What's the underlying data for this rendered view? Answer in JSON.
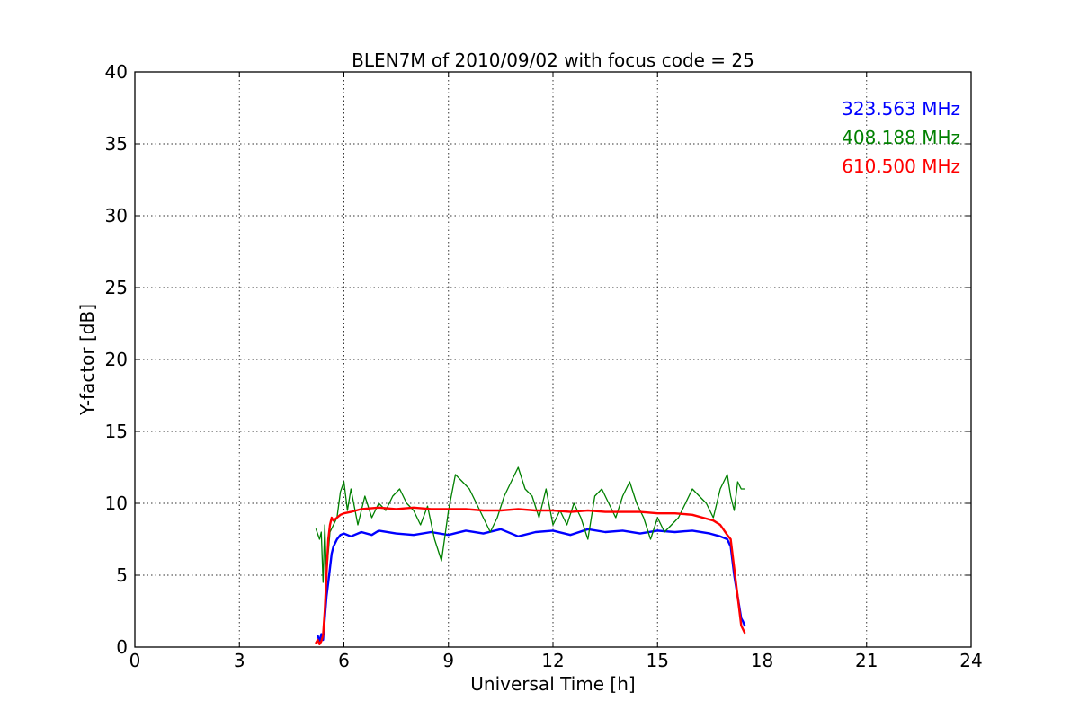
{
  "chart_data": {
    "type": "line",
    "title": "BLEN7M of 2010/09/02 with focus code = 25",
    "xlabel": "Universal Time [h]",
    "ylabel": "Y-factor [dB]",
    "xlim": [
      0,
      24
    ],
    "ylim": [
      0,
      40
    ],
    "xticks": [
      0,
      3,
      6,
      9,
      12,
      15,
      18,
      21,
      24
    ],
    "yticks": [
      0,
      5,
      10,
      15,
      20,
      25,
      30,
      35,
      40
    ],
    "grid": true,
    "legend_position": "top-right",
    "series": [
      {
        "name": "323.563 MHz",
        "color": "#0000ff",
        "x": [
          5.25,
          5.3,
          5.35,
          5.4,
          5.45,
          5.5,
          5.55,
          5.6,
          5.65,
          5.7,
          5.8,
          5.9,
          6.0,
          6.2,
          6.5,
          6.8,
          7.0,
          7.5,
          8.0,
          8.5,
          9.0,
          9.5,
          10.0,
          10.5,
          11.0,
          11.5,
          12.0,
          12.5,
          13.0,
          13.5,
          14.0,
          14.5,
          15.0,
          15.5,
          16.0,
          16.5,
          16.8,
          17.0,
          17.1,
          17.2,
          17.3,
          17.4,
          17.45,
          17.5
        ],
        "y": [
          0.8,
          0.4,
          0.9,
          0.5,
          2.0,
          3.5,
          4.5,
          5.5,
          6.5,
          7.0,
          7.5,
          7.8,
          7.9,
          7.7,
          8.0,
          7.8,
          8.1,
          7.9,
          7.8,
          8.0,
          7.8,
          8.1,
          7.9,
          8.2,
          7.7,
          8.0,
          8.1,
          7.8,
          8.2,
          8.0,
          8.1,
          7.9,
          8.1,
          8.0,
          8.1,
          7.9,
          7.7,
          7.5,
          7.0,
          5.0,
          3.5,
          2.0,
          1.8,
          1.5
        ]
      },
      {
        "name": "408.188 MHz",
        "color": "#008000",
        "x": [
          5.2,
          5.3,
          5.35,
          5.4,
          5.45,
          5.5,
          5.6,
          5.7,
          5.8,
          5.9,
          6.0,
          6.1,
          6.2,
          6.4,
          6.6,
          6.8,
          7.0,
          7.2,
          7.4,
          7.6,
          7.8,
          8.0,
          8.2,
          8.4,
          8.6,
          8.8,
          9.0,
          9.2,
          9.4,
          9.6,
          9.8,
          10.0,
          10.2,
          10.4,
          10.6,
          10.8,
          11.0,
          11.2,
          11.4,
          11.6,
          11.8,
          12.0,
          12.2,
          12.4,
          12.6,
          12.8,
          13.0,
          13.2,
          13.4,
          13.6,
          13.8,
          14.0,
          14.2,
          14.4,
          14.6,
          14.8,
          15.0,
          15.2,
          15.4,
          15.6,
          15.8,
          16.0,
          16.2,
          16.4,
          16.6,
          16.8,
          17.0,
          17.1,
          17.2,
          17.3,
          17.4,
          17.5
        ],
        "y": [
          8.2,
          7.5,
          8.0,
          4.5,
          8.5,
          5.0,
          8.0,
          8.5,
          9.0,
          10.8,
          11.5,
          9.5,
          11.0,
          8.5,
          10.5,
          9.0,
          10.0,
          9.5,
          10.5,
          11.0,
          10.0,
          9.5,
          8.5,
          9.8,
          7.5,
          6.0,
          9.5,
          12.0,
          11.5,
          11.0,
          10.0,
          9.0,
          8.0,
          9.0,
          10.5,
          11.5,
          12.5,
          11.0,
          10.5,
          9.0,
          11.0,
          8.5,
          9.5,
          8.5,
          10.0,
          9.0,
          7.5,
          10.5,
          11.0,
          10.0,
          9.0,
          10.5,
          11.5,
          10.0,
          9.0,
          7.5,
          9.0,
          8.0,
          8.5,
          9.0,
          10.0,
          11.0,
          10.5,
          10.0,
          9.0,
          11.0,
          12.0,
          10.5,
          9.5,
          11.5,
          11.0,
          11.0
        ]
      },
      {
        "name": "610.500 MHz",
        "color": "#ff0000",
        "x": [
          5.2,
          5.25,
          5.3,
          5.35,
          5.4,
          5.45,
          5.5,
          5.55,
          5.6,
          5.65,
          5.7,
          5.8,
          5.9,
          6.0,
          6.2,
          6.5,
          7.0,
          7.5,
          8.0,
          8.5,
          9.0,
          9.5,
          10.0,
          10.5,
          11.0,
          11.5,
          12.0,
          12.5,
          13.0,
          13.5,
          14.0,
          14.5,
          15.0,
          15.5,
          16.0,
          16.3,
          16.6,
          16.8,
          17.0,
          17.1,
          17.2,
          17.3,
          17.4,
          17.5
        ],
        "y": [
          0.3,
          0.5,
          0.2,
          0.4,
          0.8,
          2.5,
          5.0,
          7.5,
          8.5,
          9.0,
          8.8,
          9.0,
          9.2,
          9.3,
          9.4,
          9.6,
          9.7,
          9.6,
          9.7,
          9.6,
          9.6,
          9.6,
          9.5,
          9.5,
          9.6,
          9.5,
          9.5,
          9.4,
          9.5,
          9.4,
          9.4,
          9.4,
          9.3,
          9.3,
          9.2,
          9.0,
          8.8,
          8.5,
          7.8,
          7.5,
          5.5,
          3.5,
          1.5,
          1.0
        ]
      }
    ]
  }
}
